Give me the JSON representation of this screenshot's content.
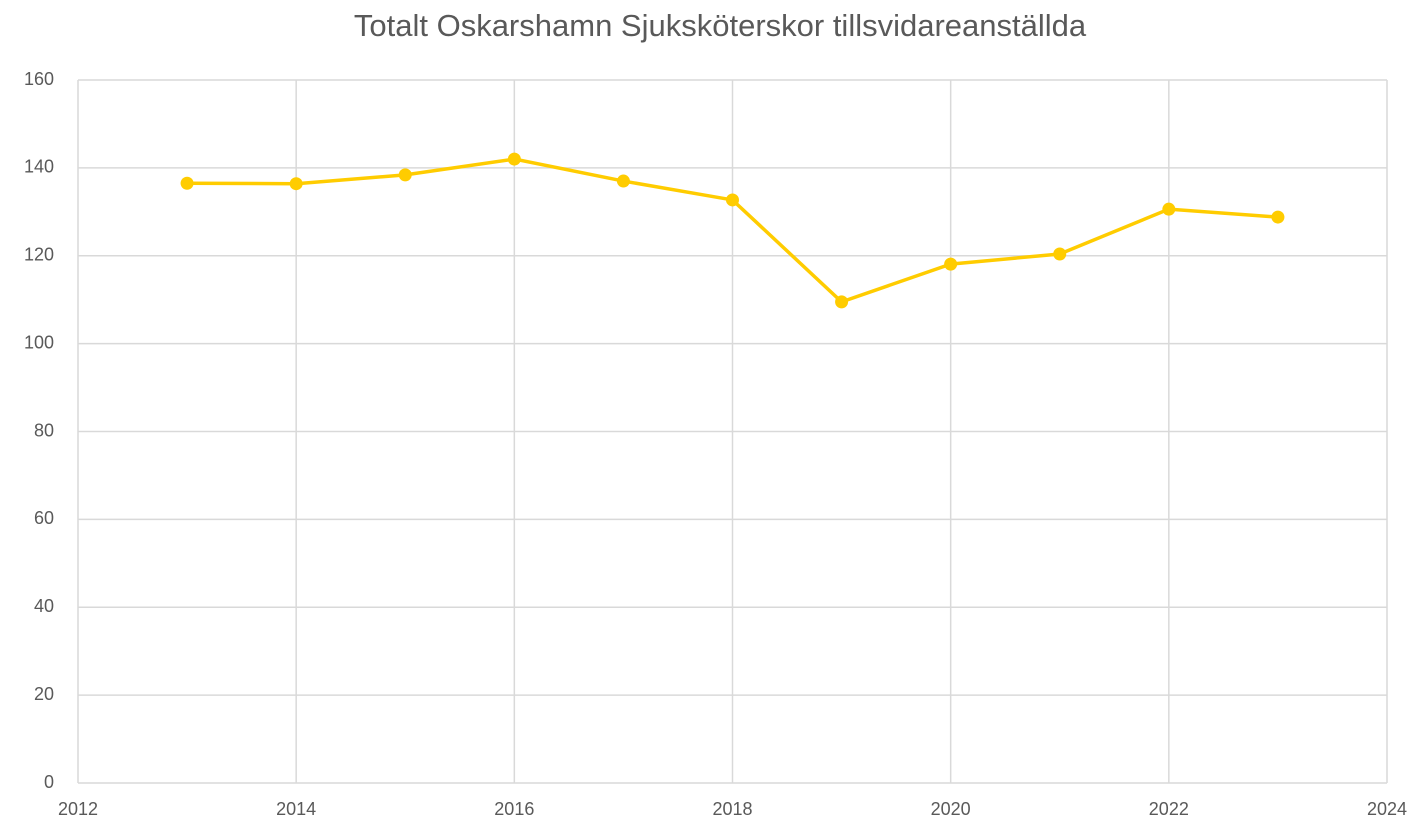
{
  "chart_data": {
    "type": "line",
    "title": "Totalt Oskarshamn Sjuksköterskor tillsvidareanställda",
    "x": [
      2013,
      2014,
      2015,
      2016,
      2017,
      2018,
      2019,
      2020,
      2021,
      2022,
      2023
    ],
    "series": [
      {
        "name": "Totalt Oskarshamn Sjuksköterskor tillsvidareanställda",
        "color": "#ffcc00",
        "values": [
          136.5,
          136.4,
          138.4,
          142.0,
          137.0,
          132.7,
          109.5,
          118.1,
          120.4,
          130.6,
          128.8
        ]
      }
    ],
    "xlim": [
      2012,
      2024
    ],
    "xticks": [
      2012,
      2014,
      2016,
      2018,
      2020,
      2022,
      2024
    ],
    "ylim": [
      0,
      160
    ],
    "yticks": [
      0,
      20,
      40,
      60,
      80,
      100,
      120,
      140,
      160
    ],
    "grid": true
  }
}
